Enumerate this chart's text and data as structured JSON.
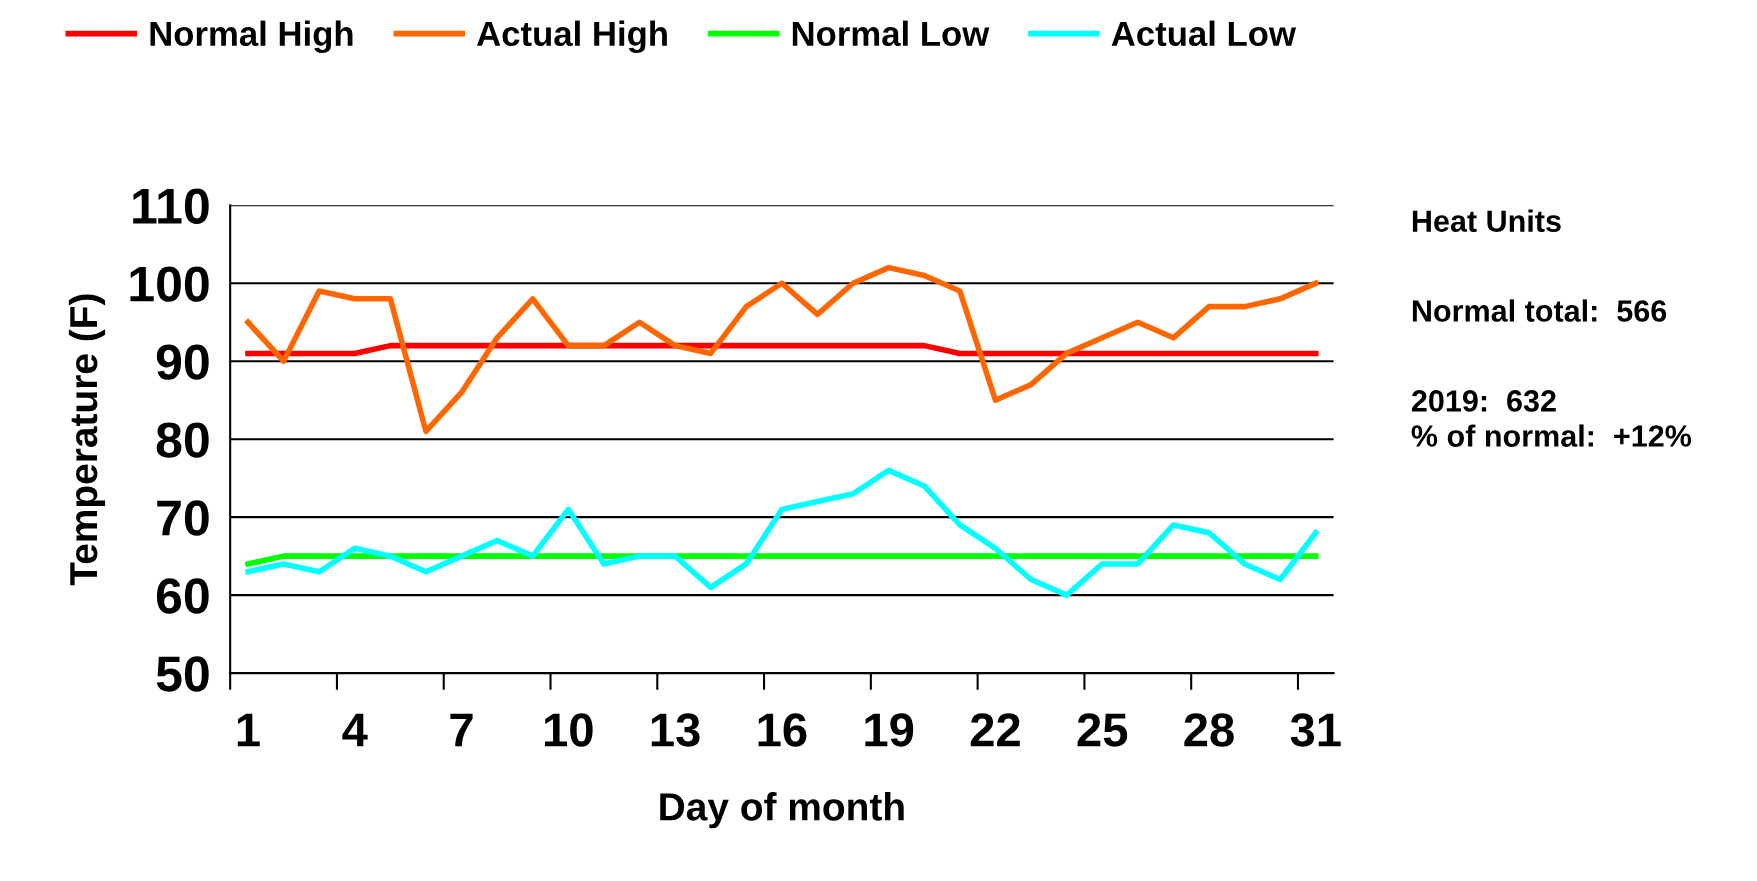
{
  "chart_data": {
    "type": "line",
    "xlabel": "Day of month",
    "ylabel": "Temperature (F)",
    "categories": [
      "1",
      null,
      null,
      "4",
      null,
      null,
      "7",
      null,
      null,
      "10",
      null,
      null,
      "13",
      null,
      null,
      "16",
      null,
      null,
      "19",
      null,
      null,
      "22",
      null,
      null,
      "25",
      null,
      null,
      "28",
      null,
      null,
      "31"
    ],
    "series": [
      {
        "name": "Normal High",
        "color": "#ff0000",
        "values": [
          91,
          91,
          91,
          91,
          92,
          92,
          92,
          92,
          92,
          92,
          92,
          92,
          92,
          92,
          92,
          92,
          92,
          92,
          92,
          92,
          91,
          91,
          91,
          91,
          91,
          91,
          91,
          91,
          91,
          91,
          91
        ]
      },
      {
        "name": "Actual High",
        "color": "#ff6600",
        "values": [
          95,
          90,
          99,
          98,
          98,
          81,
          86,
          93,
          98,
          92,
          92,
          95,
          92,
          91,
          97,
          100,
          96,
          100,
          102,
          101,
          99,
          85,
          87,
          91,
          93,
          95,
          93,
          97,
          97,
          98,
          100
        ]
      },
      {
        "name": "Normal Low",
        "color": "#00ff00",
        "values": [
          64,
          65,
          65,
          65,
          65,
          65,
          65,
          65,
          65,
          65,
          65,
          65,
          65,
          65,
          65,
          65,
          65,
          65,
          65,
          65,
          65,
          65,
          65,
          65,
          65,
          65,
          65,
          65,
          65,
          65,
          65
        ]
      },
      {
        "name": "Actual Low",
        "color": "#00ffff",
        "values": [
          63,
          64,
          63,
          66,
          65,
          63,
          65,
          67,
          65,
          71,
          64,
          65,
          65,
          61,
          64,
          71,
          72,
          73,
          76,
          74,
          69,
          66,
          62,
          60,
          64,
          64,
          69,
          68,
          64,
          62,
          68
        ]
      }
    ],
    "ylim": [
      50,
      110
    ],
    "yticks": [
      50,
      60,
      70,
      80,
      90,
      100,
      110
    ],
    "grid": "y",
    "legend": "top",
    "marker": "none",
    "line_style": "solid",
    "annotations": [
      "Heat Units",
      "Normal total:  566",
      "2019:  632\n% of normal:  +12%"
    ]
  }
}
